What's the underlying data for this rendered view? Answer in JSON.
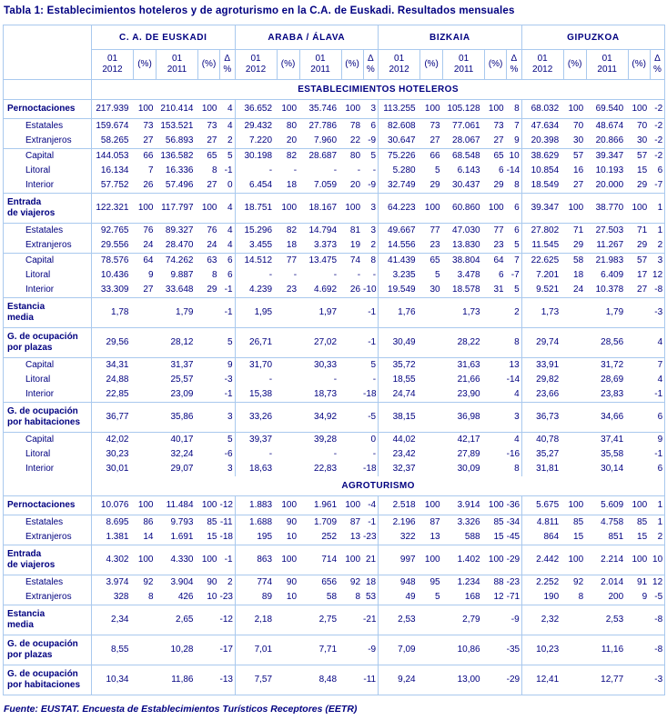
{
  "title": "Tabla 1: Establecimientos hoteleros y de agroturismo en la C.A. de Euskadi. Resultados mensuales",
  "source": "Fuente: EUSTAT. Encuesta de Establecimientos Turísticos Receptores (EETR)",
  "colors": {
    "text_navy": "#000080",
    "border_blue": "#a9c9ee",
    "background": "#ffffff"
  },
  "chart_data": {
    "type": "table",
    "title": "Tabla 1: Establecimientos hoteleros y de agroturismo en la C.A. de Euskadi. Resultados mensuales",
    "region_groups": [
      "C. A. DE EUSKADI",
      "ARABA / ÁLAVA",
      "BIZKAIA",
      "GIPUZKOA"
    ],
    "period_headers": [
      "01\n2012",
      "(%)",
      "01\n2011",
      "(%)",
      "Δ %"
    ],
    "sections": [
      {
        "banner": "ESTABLECIMIENTOS HOTELEROS",
        "rows": [
          {
            "label": "Pernoctaciones",
            "bold": true,
            "sep": true,
            "cells": [
              "217.939",
              "100",
              "210.414",
              "100",
              "4",
              "36.652",
              "100",
              "35.746",
              "100",
              "3",
              "113.255",
              "100",
              "105.128",
              "100",
              "8",
              "68.032",
              "100",
              "69.540",
              "100",
              "-2"
            ]
          },
          {
            "label": "Estatales",
            "bold": false,
            "sep": true,
            "cells": [
              "159.674",
              "73",
              "153.521",
              "73",
              "4",
              "29.432",
              "80",
              "27.786",
              "78",
              "6",
              "82.608",
              "73",
              "77.061",
              "73",
              "7",
              "47.634",
              "70",
              "48.674",
              "70",
              "-2"
            ]
          },
          {
            "label": "Extranjeros",
            "bold": false,
            "sep": false,
            "cells": [
              "58.265",
              "27",
              "56.893",
              "27",
              "2",
              "7.220",
              "20",
              "7.960",
              "22",
              "-9",
              "30.647",
              "27",
              "28.067",
              "27",
              "9",
              "20.398",
              "30",
              "20.866",
              "30",
              "-2"
            ]
          },
          {
            "label": "Capital",
            "bold": false,
            "sep": true,
            "cells": [
              "144.053",
              "66",
              "136.582",
              "65",
              "5",
              "30.198",
              "82",
              "28.687",
              "80",
              "5",
              "75.226",
              "66",
              "68.548",
              "65",
              "10",
              "38.629",
              "57",
              "39.347",
              "57",
              "-2"
            ]
          },
          {
            "label": "Litoral",
            "bold": false,
            "sep": false,
            "cells": [
              "16.134",
              "7",
              "16.336",
              "8",
              "-1",
              "-",
              "-",
              "-",
              "-",
              "-",
              "5.280",
              "5",
              "6.143",
              "6",
              "-14",
              "10.854",
              "16",
              "10.193",
              "15",
              "6"
            ]
          },
          {
            "label": "Interior",
            "bold": false,
            "sep": false,
            "cells": [
              "57.752",
              "26",
              "57.496",
              "27",
              "0",
              "6.454",
              "18",
              "7.059",
              "20",
              "-9",
              "32.749",
              "29",
              "30.437",
              "29",
              "8",
              "18.549",
              "27",
              "20.000",
              "29",
              "-7"
            ]
          },
          {
            "label": "Entrada\nde viajeros",
            "bold": true,
            "sep": true,
            "cells": [
              "122.321",
              "100",
              "117.797",
              "100",
              "4",
              "18.751",
              "100",
              "18.167",
              "100",
              "3",
              "64.223",
              "100",
              "60.860",
              "100",
              "6",
              "39.347",
              "100",
              "38.770",
              "100",
              "1"
            ]
          },
          {
            "label": "Estatales",
            "bold": false,
            "sep": true,
            "cells": [
              "92.765",
              "76",
              "89.327",
              "76",
              "4",
              "15.296",
              "82",
              "14.794",
              "81",
              "3",
              "49.667",
              "77",
              "47.030",
              "77",
              "6",
              "27.802",
              "71",
              "27.503",
              "71",
              "1"
            ]
          },
          {
            "label": "Extranjeros",
            "bold": false,
            "sep": false,
            "cells": [
              "29.556",
              "24",
              "28.470",
              "24",
              "4",
              "3.455",
              "18",
              "3.373",
              "19",
              "2",
              "14.556",
              "23",
              "13.830",
              "23",
              "5",
              "11.545",
              "29",
              "11.267",
              "29",
              "2"
            ]
          },
          {
            "label": "Capital",
            "bold": false,
            "sep": true,
            "cells": [
              "78.576",
              "64",
              "74.262",
              "63",
              "6",
              "14.512",
              "77",
              "13.475",
              "74",
              "8",
              "41.439",
              "65",
              "38.804",
              "64",
              "7",
              "22.625",
              "58",
              "21.983",
              "57",
              "3"
            ]
          },
          {
            "label": "Litoral",
            "bold": false,
            "sep": false,
            "cells": [
              "10.436",
              "9",
              "9.887",
              "8",
              "6",
              "-",
              "-",
              "-",
              "-",
              "-",
              "3.235",
              "5",
              "3.478",
              "6",
              "-7",
              "7.201",
              "18",
              "6.409",
              "17",
              "12"
            ]
          },
          {
            "label": "Interior",
            "bold": false,
            "sep": false,
            "cells": [
              "33.309",
              "27",
              "33.648",
              "29",
              "-1",
              "4.239",
              "23",
              "4.692",
              "26",
              "-10",
              "19.549",
              "30",
              "18.578",
              "31",
              "5",
              "9.521",
              "24",
              "10.378",
              "27",
              "-8"
            ]
          },
          {
            "label": "Estancia\nmedia",
            "bold": true,
            "sep": true,
            "cells": [
              "1,78",
              "",
              "1,79",
              "",
              "-1",
              "1,95",
              "",
              "1,97",
              "",
              "-1",
              "1,76",
              "",
              "1,73",
              "",
              "2",
              "1,73",
              "",
              "1,79",
              "",
              "-3"
            ]
          },
          {
            "label": "G. de ocupación\npor plazas",
            "bold": true,
            "sep": true,
            "cells": [
              "29,56",
              "",
              "28,12",
              "",
              "5",
              "26,71",
              "",
              "27,02",
              "",
              "-1",
              "30,49",
              "",
              "28,22",
              "",
              "8",
              "29,74",
              "",
              "28,56",
              "",
              "4"
            ]
          },
          {
            "label": "Capital",
            "bold": false,
            "sep": true,
            "cells": [
              "34,31",
              "",
              "31,37",
              "",
              "9",
              "31,70",
              "",
              "30,33",
              "",
              "5",
              "35,72",
              "",
              "31,63",
              "",
              "13",
              "33,91",
              "",
              "31,72",
              "",
              "7"
            ]
          },
          {
            "label": "Litoral",
            "bold": false,
            "sep": false,
            "cells": [
              "24,88",
              "",
              "25,57",
              "",
              "-3",
              "-",
              "",
              "-",
              "",
              "-",
              "18,55",
              "",
              "21,66",
              "",
              "-14",
              "29,82",
              "",
              "28,69",
              "",
              "4"
            ]
          },
          {
            "label": "Interior",
            "bold": false,
            "sep": false,
            "cells": [
              "22,85",
              "",
              "23,09",
              "",
              "-1",
              "15,38",
              "",
              "18,73",
              "",
              "-18",
              "24,74",
              "",
              "23,90",
              "",
              "4",
              "23,66",
              "",
              "23,83",
              "",
              "-1"
            ]
          },
          {
            "label": "G. de ocupación\npor habitaciones",
            "bold": true,
            "sep": true,
            "cells": [
              "36,77",
              "",
              "35,86",
              "",
              "3",
              "33,26",
              "",
              "34,92",
              "",
              "-5",
              "38,15",
              "",
              "36,98",
              "",
              "3",
              "36,73",
              "",
              "34,66",
              "",
              "6"
            ]
          },
          {
            "label": "Capital",
            "bold": false,
            "sep": true,
            "cells": [
              "42,02",
              "",
              "40,17",
              "",
              "5",
              "39,37",
              "",
              "39,28",
              "",
              "0",
              "44,02",
              "",
              "42,17",
              "",
              "4",
              "40,78",
              "",
              "37,41",
              "",
              "9"
            ]
          },
          {
            "label": "Litoral",
            "bold": false,
            "sep": false,
            "cells": [
              "30,23",
              "",
              "32,24",
              "",
              "-6",
              "-",
              "",
              "-",
              "",
              "-",
              "23,42",
              "",
              "27,89",
              "",
              "-16",
              "35,27",
              "",
              "35,58",
              "",
              "-1"
            ]
          },
          {
            "label": "Interior",
            "bold": false,
            "sep": false,
            "cells": [
              "30,01",
              "",
              "29,07",
              "",
              "3",
              "18,63",
              "",
              "22,83",
              "",
              "-18",
              "32,37",
              "",
              "30,09",
              "",
              "8",
              "31,81",
              "",
              "30,14",
              "",
              "6"
            ]
          }
        ]
      },
      {
        "banner": "AGROTURISMO",
        "rows": [
          {
            "label": "Pernoctaciones",
            "bold": true,
            "sep": true,
            "cells": [
              "10.076",
              "100",
              "11.484",
              "100",
              "-12",
              "1.883",
              "100",
              "1.961",
              "100",
              "-4",
              "2.518",
              "100",
              "3.914",
              "100",
              "-36",
              "5.675",
              "100",
              "5.609",
              "100",
              "1"
            ]
          },
          {
            "label": "Estatales",
            "bold": false,
            "sep": true,
            "cells": [
              "8.695",
              "86",
              "9.793",
              "85",
              "-11",
              "1.688",
              "90",
              "1.709",
              "87",
              "-1",
              "2.196",
              "87",
              "3.326",
              "85",
              "-34",
              "4.811",
              "85",
              "4.758",
              "85",
              "1"
            ]
          },
          {
            "label": "Extranjeros",
            "bold": false,
            "sep": false,
            "cells": [
              "1.381",
              "14",
              "1.691",
              "15",
              "-18",
              "195",
              "10",
              "252",
              "13",
              "-23",
              "322",
              "13",
              "588",
              "15",
              "-45",
              "864",
              "15",
              "851",
              "15",
              "2"
            ]
          },
          {
            "label": "Entrada\nde viajeros",
            "bold": true,
            "sep": true,
            "cells": [
              "4.302",
              "100",
              "4.330",
              "100",
              "-1",
              "863",
              "100",
              "714",
              "100",
              "21",
              "997",
              "100",
              "1.402",
              "100",
              "-29",
              "2.442",
              "100",
              "2.214",
              "100",
              "10"
            ]
          },
          {
            "label": "Estatales",
            "bold": false,
            "sep": true,
            "cells": [
              "3.974",
              "92",
              "3.904",
              "90",
              "2",
              "774",
              "90",
              "656",
              "92",
              "18",
              "948",
              "95",
              "1.234",
              "88",
              "-23",
              "2.252",
              "92",
              "2.014",
              "91",
              "12"
            ]
          },
          {
            "label": "Extranjeros",
            "bold": false,
            "sep": false,
            "cells": [
              "328",
              "8",
              "426",
              "10",
              "-23",
              "89",
              "10",
              "58",
              "8",
              "53",
              "49",
              "5",
              "168",
              "12",
              "-71",
              "190",
              "8",
              "200",
              "9",
              "-5"
            ]
          },
          {
            "label": "Estancia\nmedia",
            "bold": true,
            "sep": true,
            "cells": [
              "2,34",
              "",
              "2,65",
              "",
              "-12",
              "2,18",
              "",
              "2,75",
              "",
              "-21",
              "2,53",
              "",
              "2,79",
              "",
              "-9",
              "2,32",
              "",
              "2,53",
              "",
              "-8"
            ]
          },
          {
            "label": "G. de ocupación\npor plazas",
            "bold": true,
            "sep": true,
            "cells": [
              "8,55",
              "",
              "10,28",
              "",
              "-17",
              "7,01",
              "",
              "7,71",
              "",
              "-9",
              "7,09",
              "",
              "10,86",
              "",
              "-35",
              "10,23",
              "",
              "11,16",
              "",
              "-8"
            ]
          },
          {
            "label": "G. de ocupación\npor habitaciones",
            "bold": true,
            "sep": true,
            "cells": [
              "10,34",
              "",
              "11,86",
              "",
              "-13",
              "7,57",
              "",
              "8,48",
              "",
              "-11",
              "9,24",
              "",
              "13,00",
              "",
              "-29",
              "12,41",
              "",
              "12,77",
              "",
              "-3"
            ]
          }
        ]
      }
    ]
  }
}
